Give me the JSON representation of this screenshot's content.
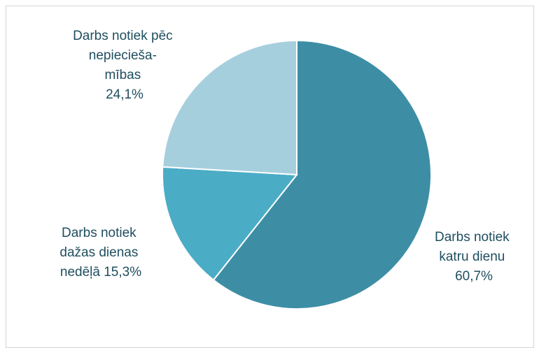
{
  "chart_data": {
    "type": "pie",
    "title": "",
    "slices": [
      {
        "label_lines": [
          "Darbs notiek",
          "katru dienu"
        ],
        "value_text": "60,7%",
        "value": 60.7,
        "color": "#3d8ea5"
      },
      {
        "label_lines": [
          "Darbs notiek",
          "dažas dienas"
        ],
        "value_text": "nedēļā 15,3%",
        "value": 15.3,
        "color": "#4bacc6"
      },
      {
        "label_lines": [
          "Darbs notiek pēc",
          "nepiecieša-",
          "mības"
        ],
        "value_text": "24,1%",
        "value": 24.1,
        "color": "#a6cfdd"
      }
    ],
    "legend": "none",
    "data_labels": "outside"
  }
}
